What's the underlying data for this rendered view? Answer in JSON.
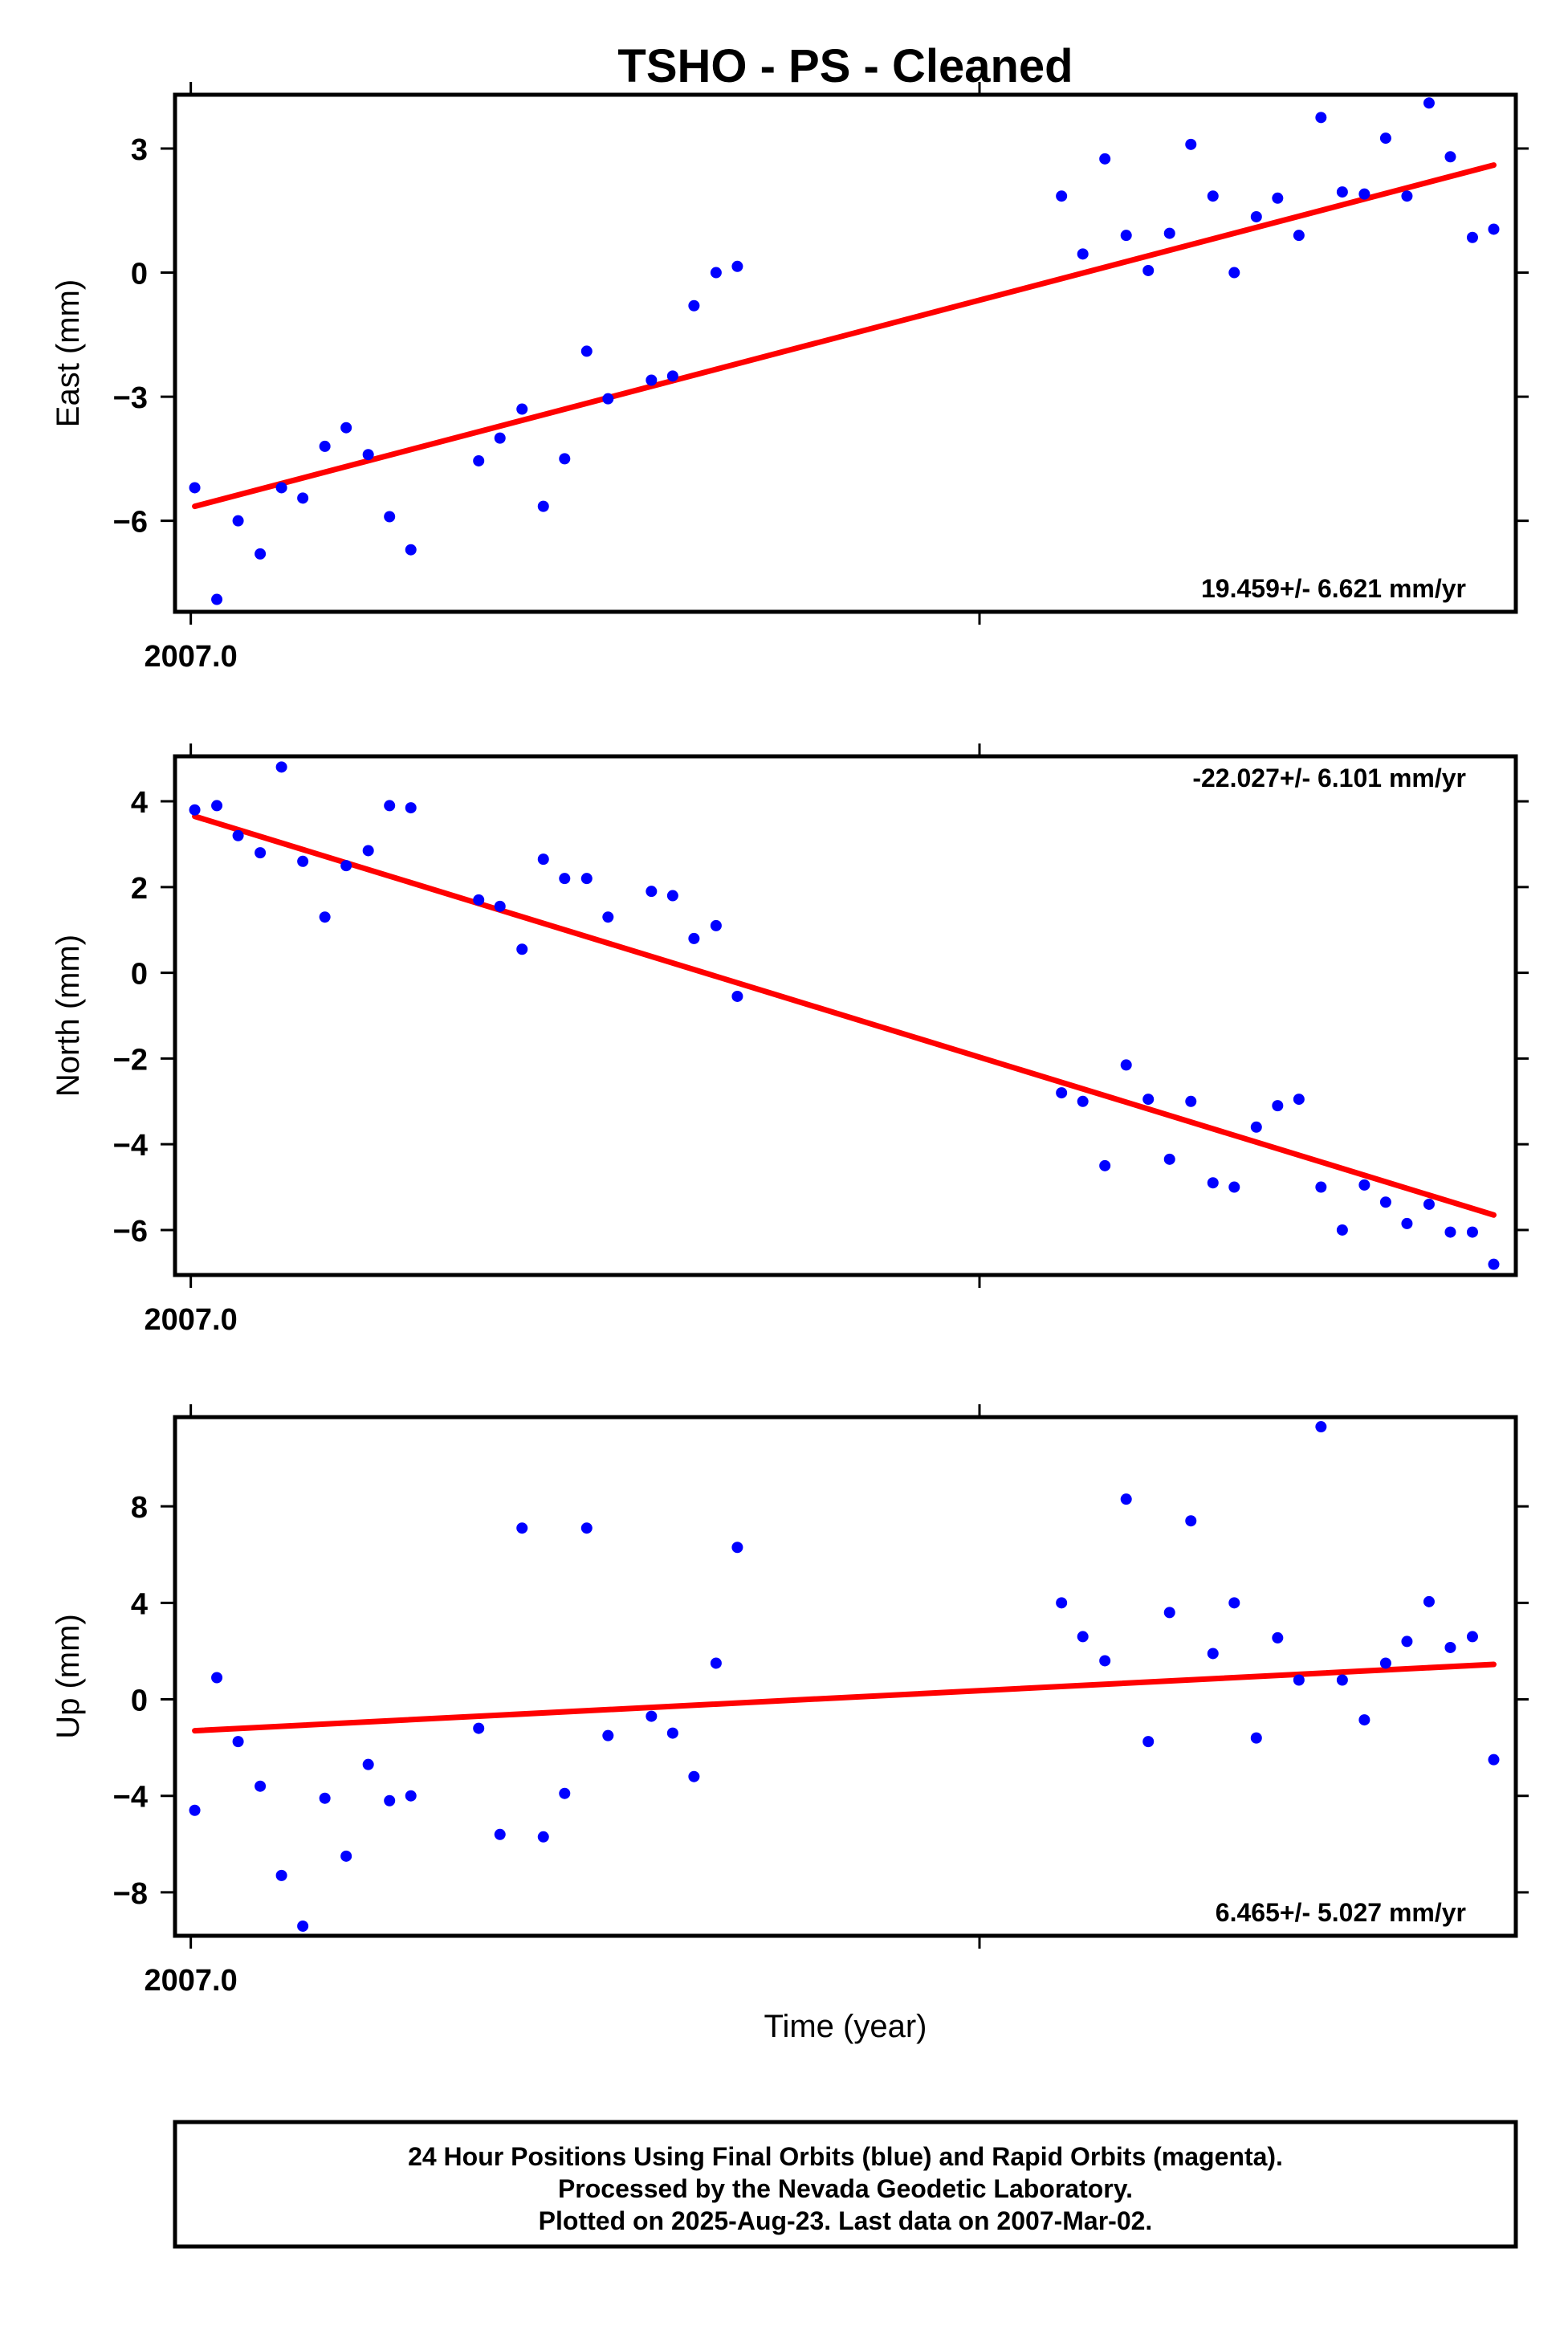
{
  "chart_data": {
    "type": "scatter",
    "title": "TSHO  - PS - Cleaned",
    "xlabel": "Time (year)",
    "x_tick_label": "2007.0",
    "xlim": [
      2006.998,
      2007.168
    ],
    "footer": [
      "24 Hour Positions Using Final Orbits (blue) and Rapid Orbits (magenta).",
      "Processed by the Nevada Geodetic Laboratory.",
      "Plotted on 2025-Aug-23. Last data on 2007-Mar-02."
    ],
    "x": [
      2007.0005,
      2007.0033,
      2007.006,
      2007.0088,
      2007.0115,
      2007.0142,
      2007.017,
      2007.0197,
      2007.0225,
      2007.0252,
      2007.0279,
      2007.0365,
      2007.0392,
      2007.042,
      2007.0447,
      2007.0474,
      2007.0502,
      2007.0529,
      2007.0584,
      2007.0611,
      2007.0638,
      2007.0666,
      2007.0693,
      2007.1104,
      2007.1131,
      2007.1159,
      2007.1186,
      2007.1214,
      2007.1241,
      2007.1268,
      2007.1296,
      2007.1323,
      2007.1351,
      2007.1378,
      2007.1405,
      2007.1433,
      2007.146,
      2007.1488,
      2007.1515,
      2007.1542,
      2007.157,
      2007.1597,
      2007.1625,
      2007.1652
    ],
    "panels": [
      {
        "ylabel": "East (mm)",
        "ylim": [
          -8.2,
          4.3
        ],
        "yticks": [
          3,
          0,
          -3,
          -6
        ],
        "ytick_labels": [
          "3",
          "0",
          "−3",
          "−6"
        ],
        "rate": "19.459+/- 6.621 mm/yr",
        "fit": [
          [
            2007.0005,
            -5.65
          ],
          [
            2007.1652,
            2.6
          ]
        ],
        "y": [
          -5.2,
          -7.9,
          -6.0,
          -6.8,
          -5.2,
          -5.45,
          -4.2,
          -3.75,
          -4.4,
          -5.9,
          -6.7,
          -4.55,
          -4.0,
          -3.3,
          -5.65,
          -4.5,
          -1.9,
          -3.05,
          -2.6,
          -2.5,
          -0.8,
          0.0,
          0.15,
          1.85,
          0.45,
          2.75,
          0.9,
          0.05,
          0.95,
          3.1,
          1.85,
          0.0,
          1.35,
          1.8,
          0.9,
          3.75,
          1.95,
          1.9,
          3.25,
          1.85,
          4.1,
          2.8,
          0.85,
          1.05
        ]
      },
      {
        "ylabel": "North (mm)",
        "ylim": [
          -7.05,
          5.05
        ],
        "yticks": [
          4,
          2,
          0,
          -2,
          -4,
          -6
        ],
        "ytick_labels": [
          "4",
          "2",
          "0",
          "−2",
          "−4",
          "−6"
        ],
        "rate": "-22.027+/- 6.101 mm/yr",
        "fit": [
          [
            2007.0005,
            3.65
          ],
          [
            2007.1652,
            -5.65
          ]
        ],
        "y": [
          3.8,
          3.9,
          3.2,
          2.8,
          4.8,
          2.6,
          1.3,
          2.5,
          2.85,
          3.9,
          3.85,
          1.7,
          1.55,
          0.55,
          2.65,
          2.2,
          2.2,
          1.3,
          1.9,
          1.8,
          0.8,
          1.1,
          -0.55,
          -2.8,
          -3.0,
          -4.5,
          -2.15,
          -2.95,
          -4.35,
          -3.0,
          -4.9,
          -5.0,
          -3.6,
          -3.1,
          -2.95,
          -5.0,
          -6.0,
          -4.95,
          -5.35,
          -5.85,
          -5.4,
          -6.05,
          -6.05,
          -6.8
        ]
      },
      {
        "ylabel": "Up (mm)",
        "ylim": [
          -9.8,
          11.7
        ],
        "yticks": [
          8,
          4,
          0,
          -4,
          -8
        ],
        "ytick_labels": [
          "8",
          "4",
          "0",
          "−4",
          "−8"
        ],
        "rate": "6.465+/- 5.027 mm/yr",
        "fit": [
          [
            2007.0005,
            -1.3
          ],
          [
            2007.1652,
            1.45
          ]
        ],
        "y": [
          -4.6,
          0.9,
          -1.75,
          -3.6,
          -7.3,
          -9.4,
          -4.1,
          -6.5,
          -2.7,
          -4.2,
          -4.0,
          -1.2,
          -5.6,
          7.1,
          -5.7,
          -3.9,
          7.1,
          -1.5,
          -0.7,
          -1.4,
          -3.2,
          1.5,
          6.3,
          4.0,
          2.6,
          1.6,
          8.3,
          -1.75,
          3.6,
          7.4,
          1.9,
          4.0,
          -1.6,
          2.55,
          0.8,
          11.3,
          0.8,
          -0.85,
          1.5,
          2.4,
          4.05,
          2.15,
          2.6,
          -2.5
        ]
      }
    ]
  },
  "colors": {
    "data": "#0000ff",
    "fit": "#ff0000",
    "frame": "#000000"
  }
}
